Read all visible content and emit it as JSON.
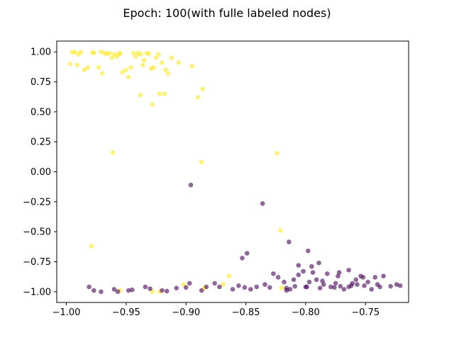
{
  "chart_data": {
    "type": "scatter",
    "title": "Epoch: 100(with fulle labeled nodes)",
    "xlabel": "",
    "ylabel": "",
    "xlim": [
      -1.008,
      -0.714
    ],
    "ylim": [
      -1.09,
      1.09
    ],
    "grid": false,
    "xticks": [
      {
        "value": -1.0,
        "label": "−1.00"
      },
      {
        "value": -0.95,
        "label": "−0.95"
      },
      {
        "value": -0.9,
        "label": "−0.90"
      },
      {
        "value": -0.85,
        "label": "−0.85"
      },
      {
        "value": -0.8,
        "label": "−0.80"
      },
      {
        "value": -0.75,
        "label": "−0.75"
      }
    ],
    "yticks": [
      {
        "value": 1.0,
        "label": "1.00"
      },
      {
        "value": 0.75,
        "label": "0.75"
      },
      {
        "value": 0.5,
        "label": "0.50"
      },
      {
        "value": 0.25,
        "label": "0.25"
      },
      {
        "value": 0.0,
        "label": "0.00"
      },
      {
        "value": -0.25,
        "label": "−0.25"
      },
      {
        "value": -0.5,
        "label": "−0.50"
      },
      {
        "value": -0.75,
        "label": "−0.75"
      },
      {
        "value": -1.0,
        "label": "−1.00"
      }
    ],
    "series": [
      {
        "color": "#fde725",
        "points": [
          [
            -0.995,
            0.995
          ],
          [
            -0.993,
            1.0
          ],
          [
            -0.99,
            0.98
          ],
          [
            -0.988,
            0.995
          ],
          [
            -0.985,
            0.85
          ],
          [
            -0.982,
            0.87
          ],
          [
            -0.978,
            0.995
          ],
          [
            -0.977,
            0.99
          ],
          [
            -0.973,
            0.87
          ],
          [
            -0.971,
            1.0
          ],
          [
            -0.97,
            0.82
          ],
          [
            -0.968,
            0.99
          ],
          [
            -0.966,
            0.985
          ],
          [
            -0.964,
            0.99
          ],
          [
            -0.962,
            0.95
          ],
          [
            -0.96,
            0.98
          ],
          [
            -0.958,
            0.96
          ],
          [
            -0.956,
            0.98
          ],
          [
            -0.955,
            0.99
          ],
          [
            -0.953,
            0.83
          ],
          [
            -0.95,
            0.85
          ],
          [
            -0.948,
            0.79
          ],
          [
            -0.946,
            0.87
          ],
          [
            -0.944,
            0.99
          ],
          [
            -0.942,
            0.96
          ],
          [
            -0.94,
            0.99
          ],
          [
            -0.938,
            0.98
          ],
          [
            -0.936,
            0.89
          ],
          [
            -0.935,
            0.93
          ],
          [
            -0.933,
            0.99
          ],
          [
            -0.931,
            0.985
          ],
          [
            -0.929,
            0.86
          ],
          [
            -0.927,
            0.87
          ],
          [
            -0.925,
            0.95
          ],
          [
            -0.923,
            0.98
          ],
          [
            -0.92,
            0.91
          ],
          [
            -0.918,
            0.65
          ],
          [
            -0.917,
            0.85
          ],
          [
            -0.915,
            0.82
          ],
          [
            -0.912,
            0.95
          ],
          [
            -0.906,
            0.91
          ],
          [
            -0.895,
            0.88
          ],
          [
            -0.886,
            0.69
          ],
          [
            -0.89,
            0.62
          ],
          [
            -0.938,
            0.64
          ],
          [
            -0.922,
            0.65
          ],
          [
            -0.928,
            0.56
          ],
          [
            -0.997,
            0.9
          ],
          [
            -0.991,
            0.89
          ],
          [
            -0.961,
            0.16
          ],
          [
            -0.887,
            0.08
          ],
          [
            -0.824,
            0.155
          ],
          [
            -0.979,
            -0.62
          ],
          [
            -0.821,
            -0.49
          ],
          [
            -0.864,
            -0.87
          ],
          [
            -0.955,
            -0.99
          ],
          [
            -0.928,
            -1.0
          ],
          [
            -0.922,
            -1.0
          ],
          [
            -0.885,
            -0.97
          ],
          [
            -0.869,
            -0.94
          ],
          [
            -0.82,
            -0.97
          ],
          [
            -0.902,
            -0.94
          ]
        ]
      },
      {
        "color": "#440154",
        "points": [
          [
            -0.896,
            -0.11
          ],
          [
            -0.836,
            -0.265
          ],
          [
            -0.814,
            -0.585
          ],
          [
            -0.798,
            -0.66
          ],
          [
            -0.849,
            -0.68
          ],
          [
            -0.853,
            -0.72
          ],
          [
            -0.772,
            -0.84
          ],
          [
            -0.764,
            -0.82
          ],
          [
            -0.806,
            -0.78
          ],
          [
            -0.795,
            -0.79
          ],
          [
            -0.789,
            -0.76
          ],
          [
            -0.773,
            -0.87
          ],
          [
            -0.981,
            -0.96
          ],
          [
            -0.977,
            -0.99
          ],
          [
            -0.971,
            -1.0
          ],
          [
            -0.96,
            -0.98
          ],
          [
            -0.957,
            -1.0
          ],
          [
            -0.948,
            -0.99
          ],
          [
            -0.945,
            -0.985
          ],
          [
            -0.934,
            -0.96
          ],
          [
            -0.93,
            -0.975
          ],
          [
            -0.92,
            -0.99
          ],
          [
            -0.916,
            -0.995
          ],
          [
            -0.908,
            -0.97
          ],
          [
            -0.9,
            -0.965
          ],
          [
            -0.897,
            -0.93
          ],
          [
            -0.887,
            -0.99
          ],
          [
            -0.883,
            -0.96
          ],
          [
            -0.876,
            -0.93
          ],
          [
            -0.872,
            -0.96
          ],
          [
            -0.861,
            -0.98
          ],
          [
            -0.856,
            -0.95
          ],
          [
            -0.851,
            -0.965
          ],
          [
            -0.846,
            -0.98
          ],
          [
            -0.841,
            -0.96
          ],
          [
            -0.834,
            -0.94
          ],
          [
            -0.83,
            -0.965
          ],
          [
            -0.827,
            -0.85
          ],
          [
            -0.823,
            -0.88
          ],
          [
            -0.818,
            -0.92
          ],
          [
            -0.816,
            -0.97
          ],
          [
            -0.813,
            -0.98
          ],
          [
            -0.81,
            -0.9
          ],
          [
            -0.806,
            -0.86
          ],
          [
            -0.802,
            -0.83
          ],
          [
            -0.8,
            -0.96
          ],
          [
            -0.797,
            -0.92
          ],
          [
            -0.794,
            -0.84
          ],
          [
            -0.791,
            -0.9
          ],
          [
            -0.788,
            -0.97
          ],
          [
            -0.785,
            -0.94
          ],
          [
            -0.782,
            -0.85
          ],
          [
            -0.779,
            -0.96
          ],
          [
            -0.775,
            -0.93
          ],
          [
            -0.771,
            -0.955
          ],
          [
            -0.768,
            -0.98
          ],
          [
            -0.764,
            -0.96
          ],
          [
            -0.761,
            -0.93
          ],
          [
            -0.758,
            -0.9
          ],
          [
            -0.754,
            -0.87
          ],
          [
            -0.751,
            -0.95
          ],
          [
            -0.748,
            -0.92
          ],
          [
            -0.745,
            -0.98
          ],
          [
            -0.742,
            -0.88
          ],
          [
            -0.738,
            -0.96
          ],
          [
            -0.735,
            -0.87
          ],
          [
            -0.729,
            -0.955
          ],
          [
            -0.724,
            -0.94
          ],
          [
            -0.721,
            -0.95
          ],
          [
            -0.809,
            -0.955
          ],
          [
            -0.799,
            -0.96
          ],
          [
            -0.786,
            -0.91
          ],
          [
            -0.776,
            -0.965
          ],
          [
            -0.762,
            -0.95
          ],
          [
            -0.757,
            -0.94
          ],
          [
            -0.752,
            -0.88
          ],
          [
            -0.74,
            -0.94
          ],
          [
            -0.816,
            -0.99
          ]
        ]
      }
    ]
  }
}
